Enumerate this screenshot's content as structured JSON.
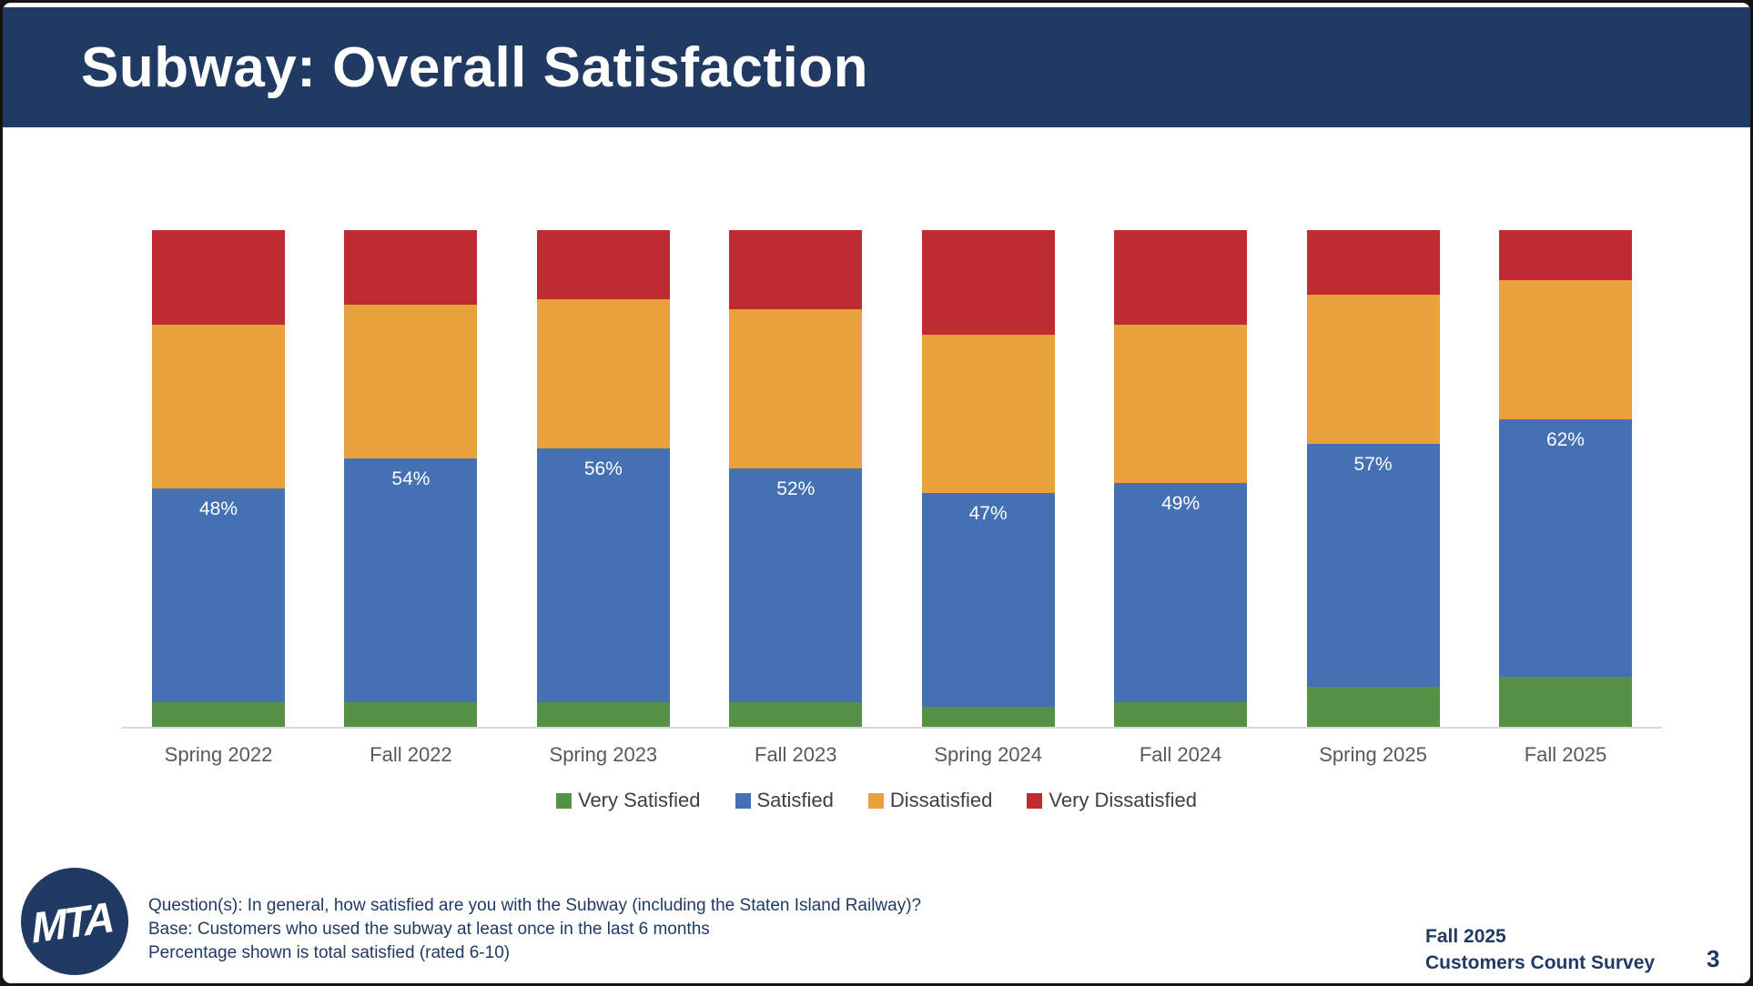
{
  "slide": {
    "title": "Subway: Overall Satisfaction",
    "logo_text": "MTA",
    "footnotes": {
      "line1": "Question(s): In general, how satisfied are you with the Subway (including the Staten Island Railway)?",
      "line2": "Base: Customers who used the subway at least once in the last 6 months",
      "line3": "Percentage shown is total satisfied (rated 6-10)"
    },
    "footer_right": {
      "line1": "Fall 2025",
      "line2": "Customers Count Survey"
    },
    "page_number": "3"
  },
  "colors": {
    "header_navy": "#203A64",
    "very_satisfied_green": "#569245",
    "satisfied_blue": "#4471B3",
    "dissatisfied_orange": "#E9A23B",
    "very_dissatisfied_red": "#BE2B31",
    "axis_line": "#D9D9D9",
    "axis_label_gray": "#595959",
    "legend_text_gray": "#3F3F3F",
    "bar_label_white": "#FFFFFF"
  },
  "chart_data": {
    "type": "bar",
    "stacked": true,
    "title": "",
    "xlabel": "",
    "ylabel": "",
    "ylim": [
      0,
      100
    ],
    "grid": false,
    "legend_position": "bottom",
    "categories": [
      "Spring 2022",
      "Fall 2022",
      "Spring 2023",
      "Fall 2023",
      "Spring 2024",
      "Fall 2024",
      "Spring 2025",
      "Fall 2025"
    ],
    "series": [
      {
        "name": "Very Satisfied",
        "color": "#569245",
        "values": [
          5,
          5,
          5,
          5,
          4,
          5,
          8,
          10
        ]
      },
      {
        "name": "Satisfied",
        "color": "#4471B3",
        "values": [
          43,
          49,
          51,
          47,
          43,
          44,
          49,
          52
        ]
      },
      {
        "name": "Dissatisfied",
        "color": "#E9A23B",
        "values": [
          33,
          31,
          30,
          32,
          32,
          32,
          30,
          28
        ]
      },
      {
        "name": "Very Dissatisfied",
        "color": "#BE2B31",
        "values": [
          19,
          15,
          14,
          16,
          21,
          19,
          13,
          10
        ]
      }
    ],
    "bar_labels": [
      "48%",
      "54%",
      "56%",
      "52%",
      "47%",
      "49%",
      "57%",
      "62%"
    ],
    "bar_label_meaning": "total satisfied (Very Satisfied + Satisfied), shown on the Satisfied segment"
  }
}
